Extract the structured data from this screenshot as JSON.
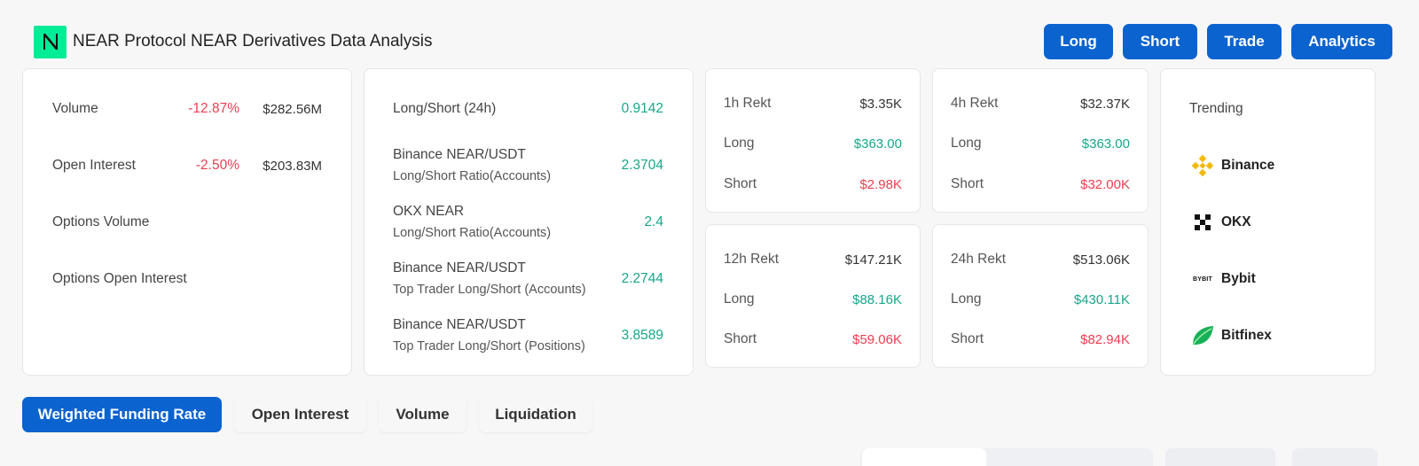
{
  "header": {
    "logo_icon": "near-logo-icon",
    "title": "NEAR Protocol NEAR Derivatives Data Analysis"
  },
  "nav": {
    "long": "Long",
    "short": "Short",
    "trade": "Trade",
    "analytics": "Analytics"
  },
  "overview": {
    "volume": {
      "label": "Volume",
      "change": "-12.87%",
      "value": "$282.56M"
    },
    "open_interest": {
      "label": "Open Interest",
      "change": "-2.50%",
      "value": "$203.83M"
    },
    "options_volume": {
      "label": "Options Volume"
    },
    "options_open_interest": {
      "label": "Options Open Interest"
    }
  },
  "ratios": [
    {
      "line1": "Long/Short (24h)",
      "line2": "",
      "value": "0.9142"
    },
    {
      "line1": "Binance NEAR/USDT",
      "line2": "Long/Short Ratio(Accounts)",
      "value": "2.3704"
    },
    {
      "line1": "OKX NEAR",
      "line2": "Long/Short Ratio(Accounts)",
      "value": "2.4"
    },
    {
      "line1": "Binance NEAR/USDT",
      "line2": "Top Trader Long/Short (Accounts)",
      "value": "2.2744"
    },
    {
      "line1": "Binance NEAR/USDT",
      "line2": "Top Trader Long/Short (Positions)",
      "value": "3.8589"
    }
  ],
  "rekt": {
    "h1": {
      "label": "1h Rekt",
      "total": "$3.35K",
      "long_label": "Long",
      "long": "$363.00",
      "short_label": "Short",
      "short": "$2.98K"
    },
    "h4": {
      "label": "4h Rekt",
      "total": "$32.37K",
      "long_label": "Long",
      "long": "$363.00",
      "short_label": "Short",
      "short": "$32.00K"
    },
    "h12": {
      "label": "12h Rekt",
      "total": "$147.21K",
      "long_label": "Long",
      "long": "$88.16K",
      "short_label": "Short",
      "short": "$59.06K"
    },
    "h24": {
      "label": "24h Rekt",
      "total": "$513.06K",
      "long_label": "Long",
      "long": "$430.11K",
      "short_label": "Short",
      "short": "$82.94K"
    }
  },
  "trending": {
    "title": "Trending",
    "items": [
      {
        "name": "Binance",
        "icon": "binance-icon"
      },
      {
        "name": "OKX",
        "icon": "okx-icon"
      },
      {
        "name": "Bybit",
        "icon": "bybit-icon",
        "icon_text": "BYBIT"
      },
      {
        "name": "Bitfinex",
        "icon": "bitfinex-icon"
      }
    ]
  },
  "tabs": [
    {
      "label": "Weighted Funding Rate",
      "active": true
    },
    {
      "label": "Open Interest",
      "active": false
    },
    {
      "label": "Volume",
      "active": false
    },
    {
      "label": "Liquidation",
      "active": false
    }
  ],
  "colors": {
    "accent": "#0b63cf",
    "negative": "#ef3d4f",
    "positive": "#17a68a",
    "near_brand": "#00ec97"
  }
}
